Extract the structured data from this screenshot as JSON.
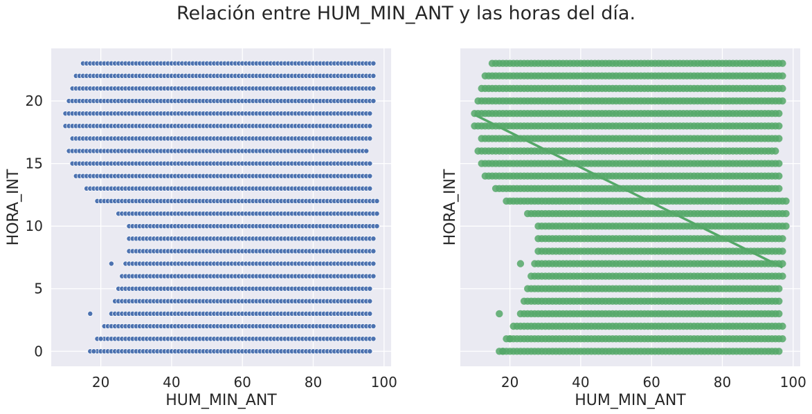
{
  "figure": {
    "title": "Relación entre HUM_MIN_ANT y las horas del día."
  },
  "colors": {
    "panel_bg": "#eaeaf2",
    "grid": "#ffffff",
    "scatter_left": "#4c72b0",
    "scatter_right": "#55a868"
  },
  "chart_data": [
    {
      "type": "scatter",
      "style": "seaborn scatterplot",
      "xlabel": "HUM_MIN_ANT",
      "ylabel": "HORA_INT",
      "xlim": [
        6,
        102
      ],
      "ylim": [
        -1.2,
        24.2
      ],
      "xticks": [
        20,
        40,
        60,
        80,
        100
      ],
      "yticks": [
        0,
        5,
        10,
        15,
        20
      ],
      "grid": true,
      "series": [
        {
          "color": "#4c72b0",
          "rows": [
            {
              "y": 0,
              "min": 17,
              "max": 96,
              "extra": [
                18
              ]
            },
            {
              "y": 1,
              "min": 19,
              "max": 97,
              "extra": [
                20
              ]
            },
            {
              "y": 2,
              "min": 21,
              "max": 97,
              "extra": []
            },
            {
              "y": 3,
              "min": 23,
              "max": 96,
              "extra": [
                17
              ]
            },
            {
              "y": 4,
              "min": 24,
              "max": 96,
              "extra": []
            },
            {
              "y": 5,
              "min": 25,
              "max": 96,
              "extra": []
            },
            {
              "y": 6,
              "min": 26,
              "max": 97,
              "extra": []
            },
            {
              "y": 7,
              "min": 27,
              "max": 97,
              "extra": [
                23
              ]
            },
            {
              "y": 8,
              "min": 28,
              "max": 97,
              "extra": []
            },
            {
              "y": 9,
              "min": 28,
              "max": 97,
              "extra": []
            },
            {
              "y": 10,
              "min": 28,
              "max": 98,
              "extra": []
            },
            {
              "y": 11,
              "min": 25,
              "max": 98,
              "extra": []
            },
            {
              "y": 12,
              "min": 19,
              "max": 98,
              "extra": []
            },
            {
              "y": 13,
              "min": 16,
              "max": 96,
              "extra": []
            },
            {
              "y": 14,
              "min": 13,
              "max": 96,
              "extra": []
            },
            {
              "y": 15,
              "min": 12,
              "max": 96,
              "extra": []
            },
            {
              "y": 16,
              "min": 11,
              "max": 95,
              "extra": []
            },
            {
              "y": 17,
              "min": 12,
              "max": 96,
              "extra": []
            },
            {
              "y": 18,
              "min": 10,
              "max": 96,
              "extra": []
            },
            {
              "y": 19,
              "min": 10,
              "max": 96,
              "extra": []
            },
            {
              "y": 20,
              "min": 11,
              "max": 97,
              "extra": []
            },
            {
              "y": 21,
              "min": 12,
              "max": 97,
              "extra": []
            },
            {
              "y": 22,
              "min": 13,
              "max": 97,
              "extra": []
            },
            {
              "y": 23,
              "min": 15,
              "max": 97,
              "extra": []
            }
          ]
        }
      ]
    },
    {
      "type": "scatter",
      "style": "seaborn regplot",
      "xlabel": "HUM_MIN_ANT",
      "ylabel": "HORA_INT",
      "xlim": [
        6,
        102
      ],
      "ylim": [
        -1.2,
        24.2
      ],
      "xticks": [
        20,
        40,
        60,
        80,
        100
      ],
      "yticks": [
        0,
        5,
        10,
        15,
        20
      ],
      "yticklabels_visible": false,
      "grid": true,
      "series": [
        {
          "color": "#55a868",
          "rows": [
            {
              "y": 0,
              "min": 17,
              "max": 96,
              "extra": [
                18
              ]
            },
            {
              "y": 1,
              "min": 19,
              "max": 97,
              "extra": [
                20
              ]
            },
            {
              "y": 2,
              "min": 21,
              "max": 97,
              "extra": []
            },
            {
              "y": 3,
              "min": 23,
              "max": 96,
              "extra": [
                17
              ]
            },
            {
              "y": 4,
              "min": 24,
              "max": 96,
              "extra": []
            },
            {
              "y": 5,
              "min": 25,
              "max": 96,
              "extra": []
            },
            {
              "y": 6,
              "min": 26,
              "max": 97,
              "extra": []
            },
            {
              "y": 7,
              "min": 27,
              "max": 97,
              "extra": [
                23
              ]
            },
            {
              "y": 8,
              "min": 28,
              "max": 97,
              "extra": []
            },
            {
              "y": 9,
              "min": 28,
              "max": 97,
              "extra": []
            },
            {
              "y": 10,
              "min": 28,
              "max": 98,
              "extra": []
            },
            {
              "y": 11,
              "min": 25,
              "max": 98,
              "extra": []
            },
            {
              "y": 12,
              "min": 19,
              "max": 98,
              "extra": []
            },
            {
              "y": 13,
              "min": 16,
              "max": 96,
              "extra": []
            },
            {
              "y": 14,
              "min": 13,
              "max": 96,
              "extra": []
            },
            {
              "y": 15,
              "min": 12,
              "max": 96,
              "extra": []
            },
            {
              "y": 16,
              "min": 11,
              "max": 95,
              "extra": []
            },
            {
              "y": 17,
              "min": 12,
              "max": 96,
              "extra": []
            },
            {
              "y": 18,
              "min": 10,
              "max": 96,
              "extra": []
            },
            {
              "y": 19,
              "min": 10,
              "max": 96,
              "extra": []
            },
            {
              "y": 20,
              "min": 11,
              "max": 97,
              "extra": []
            },
            {
              "y": 21,
              "min": 12,
              "max": 97,
              "extra": []
            },
            {
              "y": 22,
              "min": 13,
              "max": 97,
              "extra": []
            },
            {
              "y": 23,
              "min": 15,
              "max": 97,
              "extra": []
            }
          ]
        }
      ],
      "regression_line": {
        "x": [
          10,
          97
        ],
        "y": [
          18.9,
          6.7
        ]
      }
    }
  ]
}
